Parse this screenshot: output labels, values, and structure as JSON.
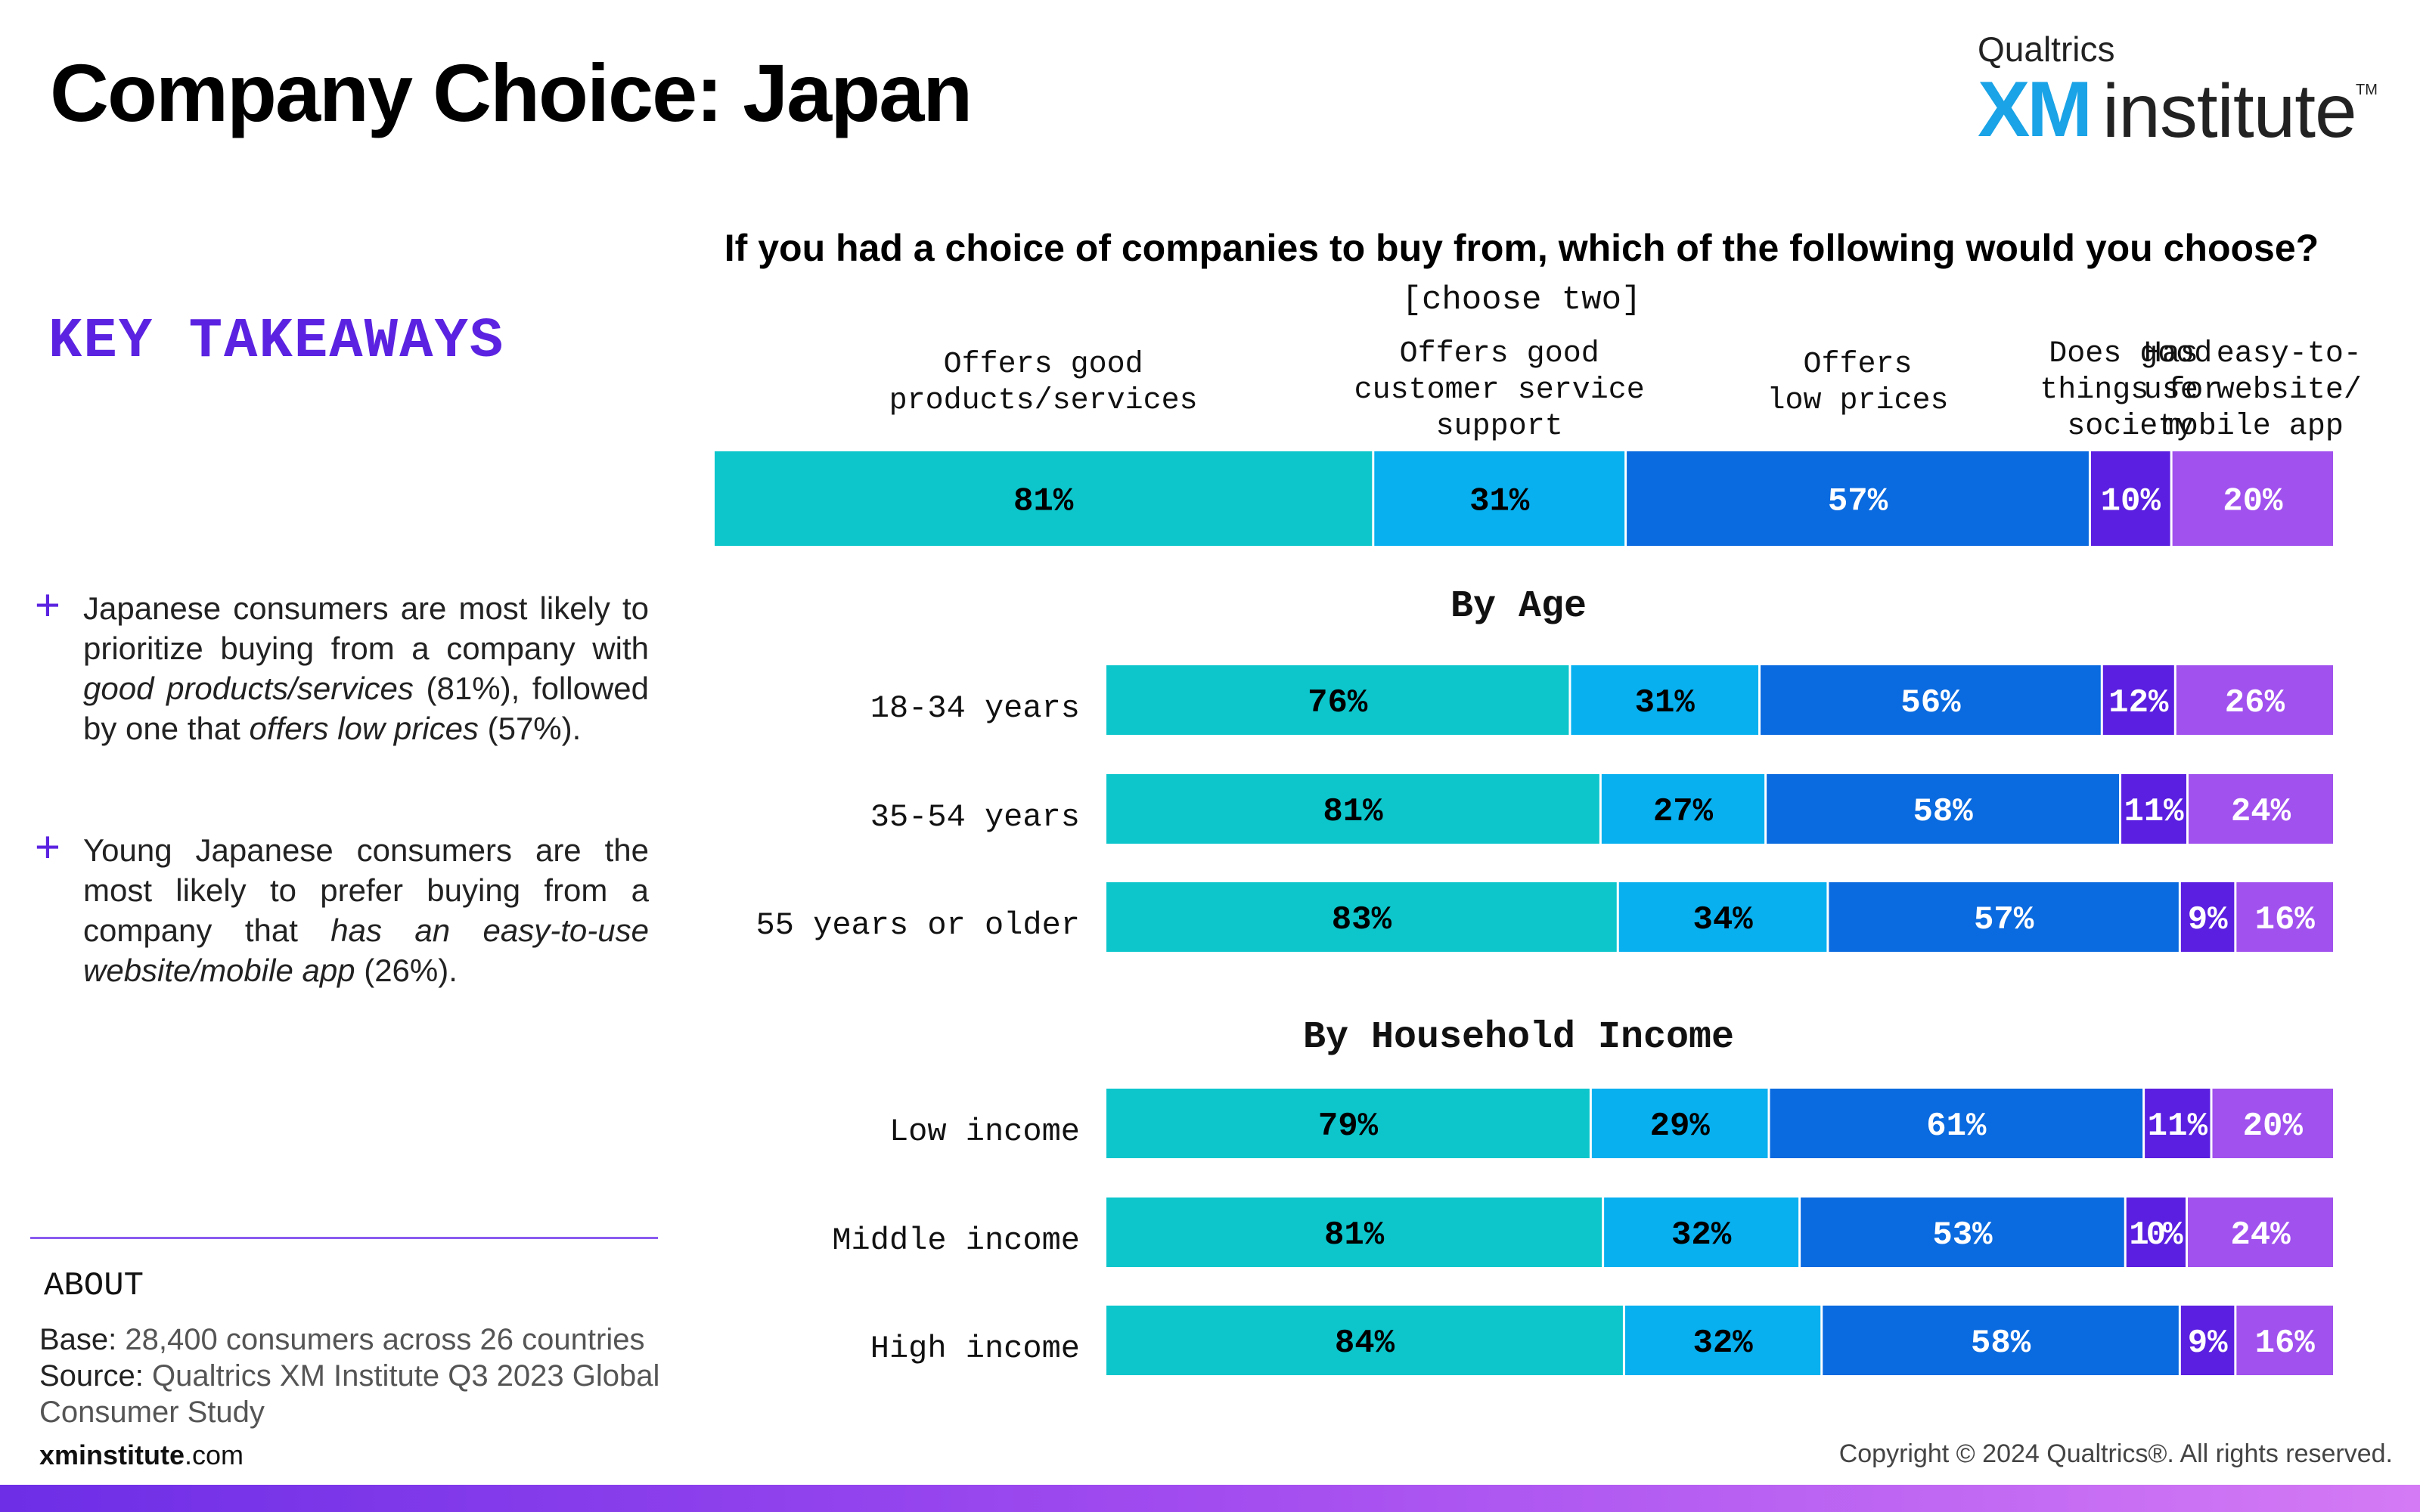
{
  "page": {
    "title": "Company Choice: Japan",
    "logo": {
      "top": "Qualtrics",
      "xm": "XM",
      "institute": "institute",
      "tm": "TM"
    },
    "key_takeaways": {
      "heading": "KEY TAKEAWAYS",
      "items": [
        {
          "parts": [
            "Japanese consumers are most likely to prioritize buying from a company with ",
            "good products/services",
            " (81%), followed by one that ",
            "offers low prices",
            " (57%)."
          ]
        },
        {
          "parts": [
            "Young Japanese consumers are the most likely to prefer buying from a company that ",
            "has an easy-to-use website/mobile app",
            " (26%)."
          ]
        }
      ]
    },
    "about": {
      "heading": "ABOUT",
      "base_label": "Base:",
      "base_value": "28,400 consumers across 26 countries",
      "source_label": "Source:",
      "source_value_line1": "Qualtrics XM Institute Q3 2023 Global",
      "source_value_line2": "Consumer Study"
    },
    "site": {
      "bold": "xminstitute",
      "rest": ".com"
    },
    "copyright": "Copyright © 2024 Qualtrics®. All rights reserved."
  },
  "chart_data": {
    "type": "bar",
    "orientation": "horizontal",
    "stacked": true,
    "title": "If you had a choice of companies to buy from, which of the following would you choose?",
    "subtitle": "[choose two]",
    "series": [
      {
        "name": "Offers good products/services",
        "color": "#0cc6cc",
        "text_color": "#000000"
      },
      {
        "name": "Offers good customer service support",
        "color": "#08b0ef",
        "text_color": "#000000"
      },
      {
        "name": "Offers low prices",
        "color": "#0a6adf",
        "text_color": "#ffffff"
      },
      {
        "name": "Does good things for society",
        "color": "#5a1fe0",
        "text_color": "#ffffff"
      },
      {
        "name": "Has easy-to-use website/ mobile app",
        "color": "#a151ee",
        "text_color": "#ffffff"
      }
    ],
    "header_labels": [
      [
        "Offers good",
        "products/services"
      ],
      [
        "Offers good",
        "customer service",
        "support"
      ],
      [
        "Offers",
        "low prices"
      ],
      [
        "Does good",
        "things for",
        "society"
      ],
      [
        "Has easy-to-",
        "use website/",
        "mobile app"
      ]
    ],
    "overall": {
      "values": [
        81,
        31,
        57,
        10,
        20
      ]
    },
    "groups": [
      {
        "title": "By Age",
        "rows": [
          {
            "label": "18-34 years",
            "values": [
              76,
              31,
              56,
              12,
              26
            ]
          },
          {
            "label": "35-54 years",
            "values": [
              81,
              27,
              58,
              11,
              24
            ]
          },
          {
            "label": "55 years or older",
            "values": [
              83,
              34,
              57,
              9,
              16
            ]
          }
        ]
      },
      {
        "title": "By Household Income",
        "rows": [
          {
            "label": "Low income",
            "values": [
              79,
              29,
              61,
              11,
              20
            ]
          },
          {
            "label": "Middle income",
            "values": [
              81,
              32,
              53,
              10,
              24
            ]
          },
          {
            "label": "High income",
            "values": [
              84,
              32,
              58,
              9,
              16
            ]
          }
        ]
      }
    ],
    "value_suffix": "%"
  }
}
